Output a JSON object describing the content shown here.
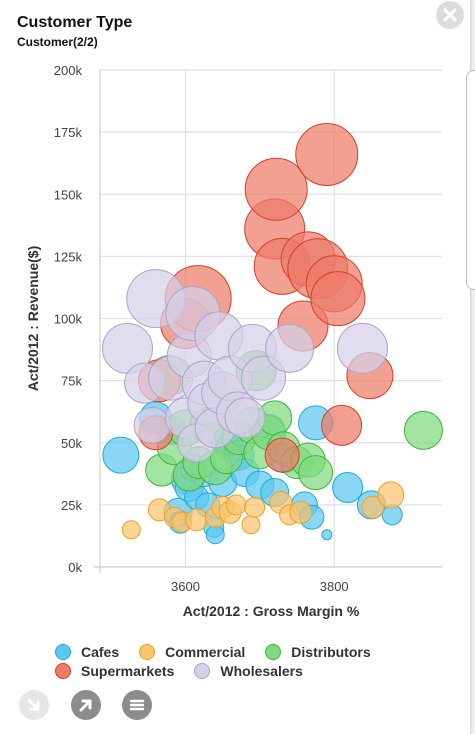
{
  "header": {
    "title": "Customer Type",
    "subtitle": "Customer(2/2)"
  },
  "icons": {
    "close": "close-icon",
    "drill": "arrow-down-right-icon",
    "expand": "arrow-up-right-icon",
    "menu": "hamburger-menu-icon"
  },
  "chart_data": {
    "type": "scatter",
    "title": "Customer Type",
    "xlabel": "Act/2012 : Gross Margin %",
    "ylabel": "Act/2012 : Revenue($)",
    "xlim": [
      3485,
      3945
    ],
    "ylim": [
      0,
      200000
    ],
    "x_ticks": [
      {
        "value": 3600,
        "label": "3600"
      },
      {
        "value": 3800,
        "label": "3800"
      }
    ],
    "y_ticks": [
      {
        "value": 0,
        "label": "0k"
      },
      {
        "value": 25000,
        "label": "25k"
      },
      {
        "value": 50000,
        "label": "50k"
      },
      {
        "value": 75000,
        "label": "75k"
      },
      {
        "value": 100000,
        "label": "100k"
      },
      {
        "value": 125000,
        "label": "125k"
      },
      {
        "value": 150000,
        "label": "150k"
      },
      {
        "value": 175000,
        "label": "175k"
      },
      {
        "value": 200000,
        "label": "200k"
      }
    ],
    "grid": true,
    "legend_position": "bottom",
    "series": [
      {
        "name": "Cafes",
        "fill": "#5bc8f0",
        "stroke": "#1fa9dd",
        "points": [
          {
            "x": 3513,
            "y": 45000,
            "size": 18
          },
          {
            "x": 3560,
            "y": 60000,
            "size": 16
          },
          {
            "x": 3582,
            "y": 55000,
            "size": 14
          },
          {
            "x": 3590,
            "y": 22000,
            "size": 14
          },
          {
            "x": 3593,
            "y": 18000,
            "size": 11
          },
          {
            "x": 3600,
            "y": 35000,
            "size": 14
          },
          {
            "x": 3605,
            "y": 32000,
            "size": 14
          },
          {
            "x": 3610,
            "y": 40000,
            "size": 13
          },
          {
            "x": 3615,
            "y": 28000,
            "size": 12
          },
          {
            "x": 3625,
            "y": 38000,
            "size": 14
          },
          {
            "x": 3630,
            "y": 25000,
            "size": 12
          },
          {
            "x": 3638,
            "y": 16000,
            "size": 10
          },
          {
            "x": 3640,
            "y": 13000,
            "size": 9
          },
          {
            "x": 3650,
            "y": 34000,
            "size": 14
          },
          {
            "x": 3655,
            "y": 50000,
            "size": 15
          },
          {
            "x": 3660,
            "y": 48000,
            "size": 14
          },
          {
            "x": 3672,
            "y": 45000,
            "size": 15
          },
          {
            "x": 3680,
            "y": 38000,
            "size": 14
          },
          {
            "x": 3700,
            "y": 33000,
            "size": 14
          },
          {
            "x": 3712,
            "y": 55000,
            "size": 16
          },
          {
            "x": 3720,
            "y": 30000,
            "size": 14
          },
          {
            "x": 3733,
            "y": 44000,
            "size": 15
          },
          {
            "x": 3760,
            "y": 25000,
            "size": 13
          },
          {
            "x": 3770,
            "y": 20000,
            "size": 12
          },
          {
            "x": 3775,
            "y": 58000,
            "size": 17
          },
          {
            "x": 3790,
            "y": 13000,
            "size": 5
          },
          {
            "x": 3818,
            "y": 32000,
            "size": 15
          },
          {
            "x": 3850,
            "y": 25000,
            "size": 14
          },
          {
            "x": 3878,
            "y": 21000,
            "size": 10
          }
        ]
      },
      {
        "name": "Commercial",
        "fill": "#f9c46e",
        "stroke": "#f0a020",
        "points": [
          {
            "x": 3527,
            "y": 15000,
            "size": 9
          },
          {
            "x": 3565,
            "y": 23000,
            "size": 11
          },
          {
            "x": 3585,
            "y": 20000,
            "size": 10
          },
          {
            "x": 3595,
            "y": 18000,
            "size": 10
          },
          {
            "x": 3615,
            "y": 19000,
            "size": 11
          },
          {
            "x": 3640,
            "y": 20000,
            "size": 10
          },
          {
            "x": 3650,
            "y": 24000,
            "size": 11
          },
          {
            "x": 3660,
            "y": 22000,
            "size": 11
          },
          {
            "x": 3668,
            "y": 25000,
            "size": 10
          },
          {
            "x": 3688,
            "y": 17000,
            "size": 9
          },
          {
            "x": 3693,
            "y": 24000,
            "size": 10
          },
          {
            "x": 3728,
            "y": 26000,
            "size": 11
          },
          {
            "x": 3740,
            "y": 21000,
            "size": 10
          },
          {
            "x": 3755,
            "y": 22000,
            "size": 11
          },
          {
            "x": 3852,
            "y": 24000,
            "size": 11
          },
          {
            "x": 3876,
            "y": 29000,
            "size": 13
          }
        ]
      },
      {
        "name": "Distributors",
        "fill": "#7fd97f",
        "stroke": "#3eb43e",
        "points": [
          {
            "x": 3568,
            "y": 39000,
            "size": 16
          },
          {
            "x": 3578,
            "y": 77000,
            "size": 20
          },
          {
            "x": 3585,
            "y": 48000,
            "size": 17
          },
          {
            "x": 3600,
            "y": 56000,
            "size": 18
          },
          {
            "x": 3605,
            "y": 37000,
            "size": 16
          },
          {
            "x": 3618,
            "y": 42000,
            "size": 16
          },
          {
            "x": 3630,
            "y": 57000,
            "size": 18
          },
          {
            "x": 3640,
            "y": 40000,
            "size": 17
          },
          {
            "x": 3655,
            "y": 44000,
            "size": 16
          },
          {
            "x": 3672,
            "y": 52000,
            "size": 17
          },
          {
            "x": 3690,
            "y": 57000,
            "size": 18
          },
          {
            "x": 3700,
            "y": 46000,
            "size": 16
          },
          {
            "x": 3712,
            "y": 54000,
            "size": 17
          },
          {
            "x": 3720,
            "y": 60000,
            "size": 17
          },
          {
            "x": 3732,
            "y": 48000,
            "size": 16
          },
          {
            "x": 3750,
            "y": 42000,
            "size": 16
          },
          {
            "x": 3765,
            "y": 43000,
            "size": 17
          },
          {
            "x": 3775,
            "y": 38000,
            "size": 17
          },
          {
            "x": 3695,
            "y": 79000,
            "size": 20
          },
          {
            "x": 3920,
            "y": 55000,
            "size": 19
          }
        ]
      },
      {
        "name": "Supermarkets",
        "fill": "#ec7b68",
        "stroke": "#d93d26",
        "points": [
          {
            "x": 3560,
            "y": 54000,
            "size": 17
          },
          {
            "x": 3565,
            "y": 75000,
            "size": 21
          },
          {
            "x": 3600,
            "y": 98000,
            "size": 25
          },
          {
            "x": 3617,
            "y": 108000,
            "size": 33
          },
          {
            "x": 3720,
            "y": 136000,
            "size": 30
          },
          {
            "x": 3722,
            "y": 152000,
            "size": 31
          },
          {
            "x": 3730,
            "y": 121000,
            "size": 28
          },
          {
            "x": 3730,
            "y": 45000,
            "size": 17
          },
          {
            "x": 3758,
            "y": 97000,
            "size": 25
          },
          {
            "x": 3765,
            "y": 124000,
            "size": 27
          },
          {
            "x": 3778,
            "y": 120000,
            "size": 30
          },
          {
            "x": 3790,
            "y": 166000,
            "size": 31
          },
          {
            "x": 3800,
            "y": 114000,
            "size": 28
          },
          {
            "x": 3805,
            "y": 108000,
            "size": 27
          },
          {
            "x": 3810,
            "y": 57000,
            "size": 20
          },
          {
            "x": 3848,
            "y": 77000,
            "size": 23
          }
        ]
      },
      {
        "name": "Wholesalers",
        "fill": "#d5d0e8",
        "stroke": "#aaa3cc",
        "points": [
          {
            "x": 3522,
            "y": 88000,
            "size": 25
          },
          {
            "x": 3545,
            "y": 74000,
            "size": 20
          },
          {
            "x": 3555,
            "y": 57000,
            "size": 18
          },
          {
            "x": 3560,
            "y": 108000,
            "size": 29
          },
          {
            "x": 3580,
            "y": 76000,
            "size": 22
          },
          {
            "x": 3600,
            "y": 60000,
            "size": 20
          },
          {
            "x": 3605,
            "y": 85000,
            "size": 22
          },
          {
            "x": 3610,
            "y": 102000,
            "size": 27
          },
          {
            "x": 3615,
            "y": 50000,
            "size": 19
          },
          {
            "x": 3625,
            "y": 74000,
            "size": 22
          },
          {
            "x": 3630,
            "y": 66000,
            "size": 20
          },
          {
            "x": 3640,
            "y": 56000,
            "size": 20
          },
          {
            "x": 3645,
            "y": 93000,
            "size": 24
          },
          {
            "x": 3650,
            "y": 70000,
            "size": 21
          },
          {
            "x": 3660,
            "y": 76000,
            "size": 22
          },
          {
            "x": 3670,
            "y": 62000,
            "size": 21
          },
          {
            "x": 3680,
            "y": 60000,
            "size": 20
          },
          {
            "x": 3690,
            "y": 88000,
            "size": 24
          },
          {
            "x": 3705,
            "y": 76000,
            "size": 22
          },
          {
            "x": 3740,
            "y": 88000,
            "size": 24
          },
          {
            "x": 3838,
            "y": 88000,
            "size": 25
          }
        ]
      }
    ]
  }
}
